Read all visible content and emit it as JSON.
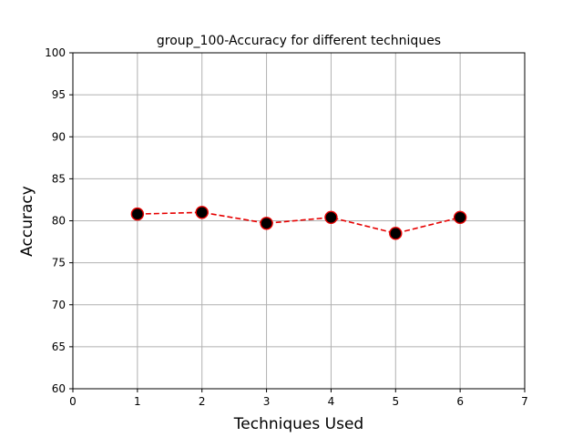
{
  "chart_data": {
    "type": "line",
    "title": "group_100-Accuracy for different techniques",
    "xlabel": "Techniques Used",
    "ylabel": "Accuracy",
    "xlim": [
      0,
      7
    ],
    "ylim": [
      60,
      100
    ],
    "xticks": [
      0,
      1,
      2,
      3,
      4,
      5,
      6,
      7
    ],
    "yticks": [
      60,
      65,
      70,
      75,
      80,
      85,
      90,
      95,
      100
    ],
    "grid": true,
    "series": [
      {
        "x": [
          1,
          2,
          3,
          4,
          5,
          6
        ],
        "values": [
          80.8,
          81.0,
          79.7,
          80.4,
          78.5,
          80.4
        ],
        "line_color": "#e60000",
        "line_style": "dashed",
        "marker": "circle",
        "marker_fill": "#000000",
        "marker_edge": "#e60000"
      }
    ]
  }
}
